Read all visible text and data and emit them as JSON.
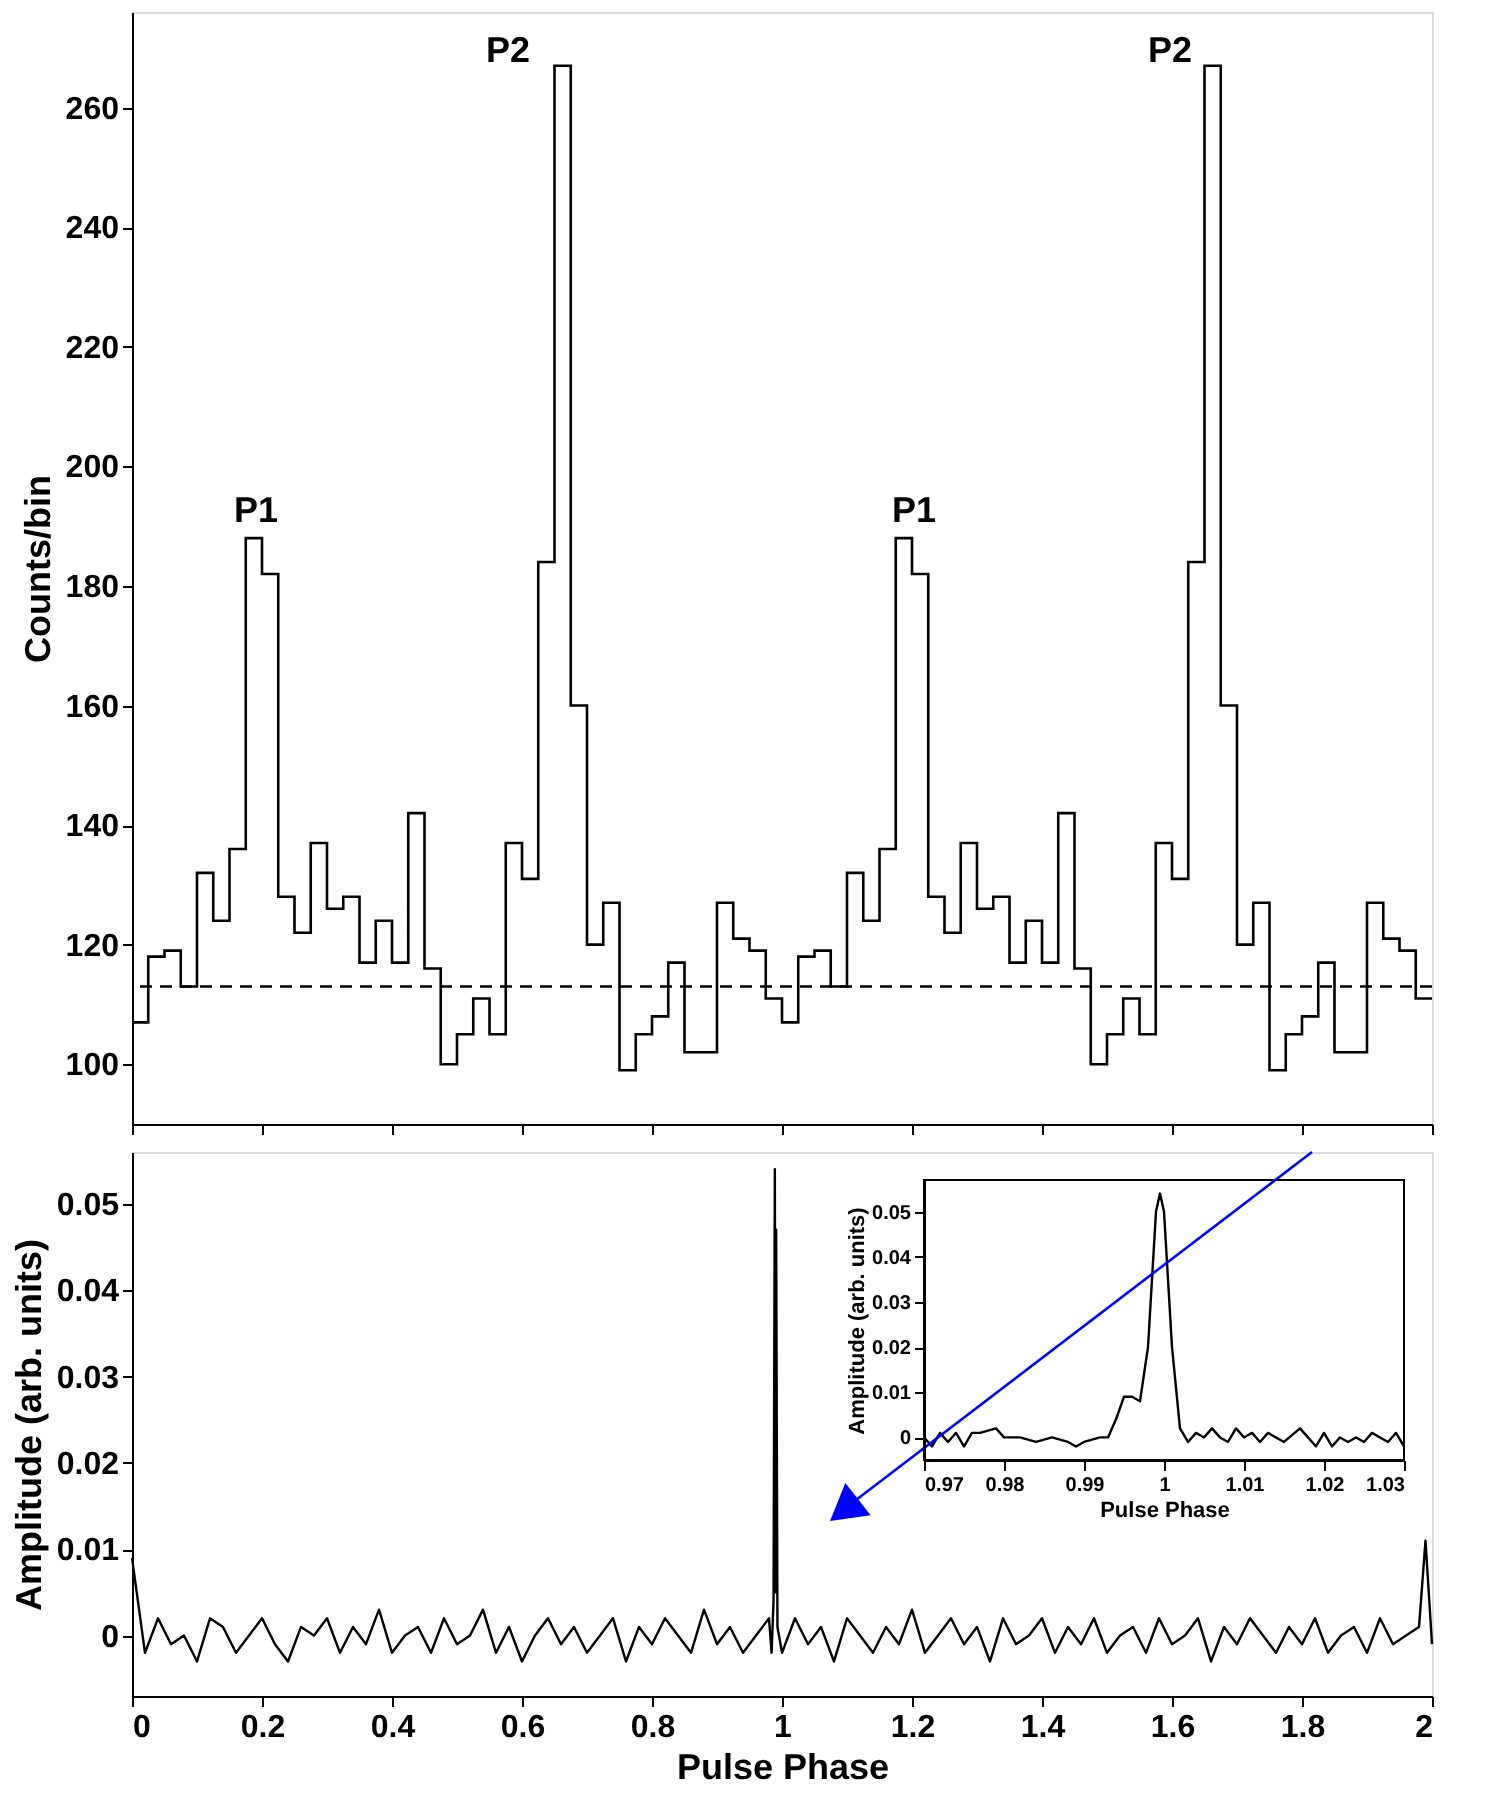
{
  "chart_data": [
    {
      "type": "histogram",
      "ylabel": "Counts/bin",
      "xlim": [
        0,
        2
      ],
      "xticks": [
        0,
        0.2,
        0.4,
        0.6,
        0.8,
        1,
        1.2,
        1.4,
        1.6,
        1.8,
        2
      ],
      "ylim": [
        90,
        276
      ],
      "yticks": [
        100,
        120,
        140,
        160,
        180,
        200,
        220,
        240,
        260
      ],
      "tick_labels": "y",
      "color": "#000000",
      "bins": [
        0,
        0.025,
        0.05,
        0.075,
        0.1,
        0.125,
        0.15,
        0.175,
        0.2,
        0.225,
        0.25,
        0.275,
        0.3,
        0.325,
        0.35,
        0.375,
        0.4,
        0.425,
        0.45,
        0.475,
        0.5,
        0.525,
        0.55,
        0.575,
        0.6,
        0.625,
        0.65,
        0.675,
        0.7,
        0.725,
        0.75,
        0.775,
        0.8,
        0.825,
        0.85,
        0.875,
        0.9,
        0.925,
        0.95,
        0.975,
        1,
        1.025,
        1.05,
        1.075,
        1.1,
        1.125,
        1.15,
        1.175,
        1.2,
        1.225,
        1.25,
        1.275,
        1.3,
        1.325,
        1.35,
        1.375,
        1.4,
        1.425,
        1.45,
        1.475,
        1.5,
        1.525,
        1.55,
        1.575,
        1.6,
        1.625,
        1.65,
        1.675,
        1.7,
        1.725,
        1.75,
        1.775,
        1.8,
        1.825,
        1.85,
        1.875,
        1.9,
        1.925,
        1.95,
        1.975,
        2
      ],
      "values": [
        107,
        118,
        119,
        113,
        132,
        124,
        136,
        188,
        182,
        128,
        122,
        137,
        126,
        128,
        117,
        124,
        117,
        142,
        116,
        100,
        105,
        111,
        105,
        137,
        131,
        184,
        267,
        160,
        120,
        127,
        99,
        105,
        108,
        117,
        102,
        102,
        127,
        121,
        119,
        111,
        107,
        118,
        119,
        113,
        132,
        124,
        136,
        188,
        182,
        128,
        122,
        137,
        126,
        128,
        117,
        124,
        117,
        142,
        116,
        100,
        105,
        111,
        105,
        137,
        131,
        184,
        267,
        160,
        120,
        127,
        99,
        105,
        108,
        117,
        102,
        102,
        127,
        121,
        119,
        111
      ],
      "ref_lines": [
        {
          "axis": "y",
          "value": 113,
          "line_style": "dashed",
          "color": "#000000"
        }
      ],
      "annotations": [
        "P1",
        "P2",
        "P1",
        "P2"
      ]
    },
    {
      "type": "line",
      "xlabel": "Pulse Phase",
      "ylabel": "Amplitude (arb. units)",
      "xlim": [
        0,
        2
      ],
      "xticks": [
        0,
        0.2,
        0.4,
        0.6,
        0.8,
        1,
        1.2,
        1.4,
        1.6,
        1.8,
        2
      ],
      "ylim": [
        -0.007,
        0.056
      ],
      "yticks": [
        0,
        0.01,
        0.02,
        0.03,
        0.04,
        0.05
      ],
      "color": "#000000",
      "x": [
        0,
        0.02,
        0.04,
        0.06,
        0.08,
        0.1,
        0.12,
        0.14,
        0.16,
        0.18,
        0.2,
        0.22,
        0.24,
        0.26,
        0.28,
        0.3,
        0.32,
        0.34,
        0.36,
        0.38,
        0.4,
        0.42,
        0.44,
        0.46,
        0.48,
        0.5,
        0.52,
        0.54,
        0.56,
        0.58,
        0.6,
        0.62,
        0.64,
        0.66,
        0.68,
        0.7,
        0.72,
        0.74,
        0.76,
        0.78,
        0.8,
        0.82,
        0.84,
        0.86,
        0.88,
        0.9,
        0.92,
        0.94,
        0.96,
        0.98,
        0.984,
        0.987,
        0.989,
        0.99,
        0.991,
        0.993,
        1,
        1.02,
        1.04,
        1.06,
        1.08,
        1.1,
        1.12,
        1.14,
        1.16,
        1.18,
        1.2,
        1.22,
        1.24,
        1.26,
        1.28,
        1.3,
        1.32,
        1.34,
        1.36,
        1.38,
        1.4,
        1.42,
        1.44,
        1.46,
        1.48,
        1.5,
        1.52,
        1.54,
        1.56,
        1.58,
        1.6,
        1.62,
        1.64,
        1.66,
        1.68,
        1.7,
        1.72,
        1.74,
        1.76,
        1.78,
        1.8,
        1.82,
        1.84,
        1.86,
        1.88,
        1.9,
        1.92,
        1.94,
        1.96,
        1.98,
        1.99,
        2
      ],
      "values": [
        0.009,
        -0.002,
        0.002,
        -0.001,
        0,
        -0.003,
        0.002,
        0.001,
        -0.002,
        0,
        0.002,
        -0.001,
        -0.003,
        0.001,
        0,
        0.002,
        -0.002,
        0.001,
        -0.001,
        0.003,
        -0.002,
        0,
        0.001,
        -0.002,
        0.002,
        -0.001,
        0,
        0.003,
        -0.002,
        0.001,
        -0.003,
        0,
        0.002,
        -0.001,
        0.001,
        -0.002,
        0,
        0.002,
        -0.003,
        0.001,
        -0.001,
        0.002,
        0,
        -0.002,
        0.003,
        -0.001,
        0.001,
        -0.002,
        0,
        0.002,
        -0.002,
        0.004,
        0.054,
        0.005,
        0.047,
        0.001,
        -0.002,
        0.002,
        -0.001,
        0.001,
        -0.003,
        0.002,
        0,
        -0.002,
        0.001,
        -0.001,
        0.003,
        -0.002,
        0,
        0.002,
        -0.001,
        0.001,
        -0.003,
        0.002,
        -0.001,
        0,
        0.002,
        -0.002,
        0.001,
        -0.001,
        0.002,
        -0.002,
        0,
        0.001,
        -0.002,
        0.002,
        -0.001,
        0,
        0.002,
        -0.003,
        0.001,
        -0.001,
        0.002,
        0,
        -0.002,
        0.001,
        -0.001,
        0.002,
        -0.002,
        0,
        0.001,
        -0.002,
        0.002,
        -0.001,
        0,
        0.001,
        0.011,
        -0.001
      ]
    },
    {
      "type": "line",
      "xlabel": "Pulse Phase",
      "ylabel": "Amplitude (arb. units)",
      "xlim": [
        0.97,
        1.03
      ],
      "xticks": [
        0.97,
        0.98,
        0.99,
        1,
        1.01,
        1.02,
        1.03
      ],
      "ylim": [
        -0.005,
        0.057
      ],
      "yticks": [
        0,
        0.01,
        0.02,
        0.03,
        0.04,
        0.05
      ],
      "color": "#000000",
      "x": [
        0.97,
        0.971,
        0.972,
        0.973,
        0.974,
        0.975,
        0.976,
        0.977,
        0.978,
        0.979,
        0.98,
        0.982,
        0.984,
        0.986,
        0.988,
        0.989,
        0.99,
        0.992,
        0.993,
        0.994,
        0.995,
        0.996,
        0.997,
        0.998,
        0.999,
        0.9995,
        1,
        1.001,
        1.002,
        1.003,
        1.004,
        1.005,
        1.006,
        1.007,
        1.008,
        1.009,
        1.01,
        1.011,
        1.012,
        1.013,
        1.014,
        1.015,
        1.017,
        1.018,
        1.019,
        1.02,
        1.021,
        1.022,
        1.023,
        1.024,
        1.025,
        1.026,
        1.027,
        1.028,
        1.029,
        1.03
      ],
      "values": [
        0,
        -0.002,
        0.001,
        -0.001,
        0.001,
        -0.002,
        0.001,
        0.001,
        0.0015,
        0.002,
        0,
        0,
        -0.001,
        0,
        -0.001,
        -0.002,
        -0.001,
        0,
        0,
        0.004,
        0.009,
        0.009,
        0.008,
        0.02,
        0.05,
        0.054,
        0.05,
        0.02,
        0.002,
        -0.001,
        0.001,
        0,
        0.002,
        0,
        -0.001,
        0.002,
        0,
        0.001,
        -0.001,
        0.001,
        0,
        -0.001,
        0.002,
        0,
        -0.002,
        0.001,
        -0.002,
        0,
        -0.001,
        0,
        -0.001,
        0.001,
        0,
        -0.001,
        0.001,
        -0.002
      ]
    }
  ]
}
